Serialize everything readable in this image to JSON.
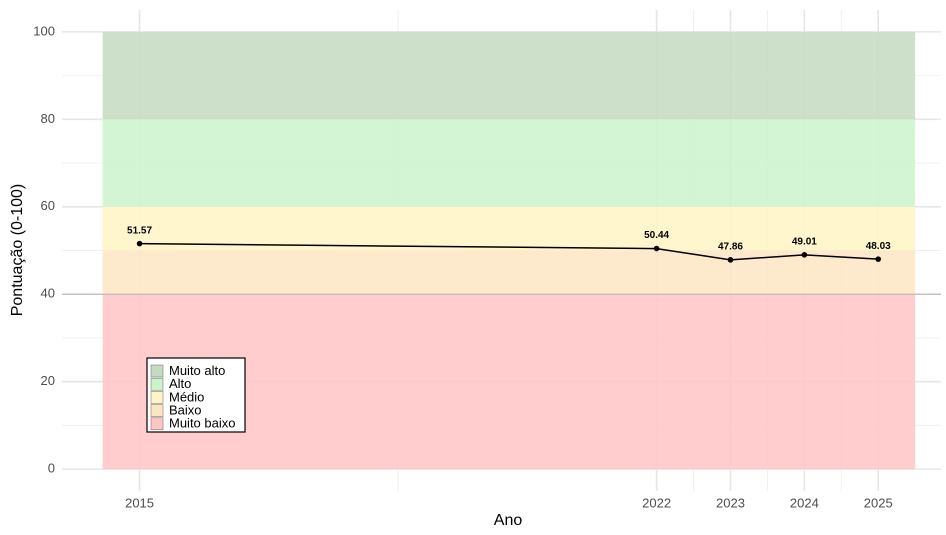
{
  "chart_data": {
    "type": "line",
    "xlabel": "Ano",
    "ylabel": "Pontuação (0-100)",
    "x": [
      2015,
      2022,
      2023,
      2024,
      2025
    ],
    "series": [
      {
        "name": "Pontuação",
        "color": "#000000",
        "values": [
          51.57,
          50.44,
          47.86,
          49.01,
          48.03
        ]
      }
    ],
    "xlim": [
      2013.95,
      2025.85
    ],
    "xticks": [
      2015,
      2022,
      2023,
      2024,
      2025
    ],
    "ylim": [
      -5,
      105
    ],
    "yticks": [
      0,
      20,
      40,
      60,
      80,
      100
    ],
    "grid": true,
    "legend_position": "bottom-left",
    "reference_line": 40,
    "bands": [
      {
        "name": "Muito alto",
        "color": "#c3dbc1",
        "range": [
          80,
          100
        ]
      },
      {
        "name": "Alto",
        "color": "#cdf3cd",
        "range": [
          60,
          80
        ]
      },
      {
        "name": "Médio",
        "color": "#fff4c4",
        "range": [
          50,
          60
        ]
      },
      {
        "name": "Baixo",
        "color": "#fde5c2",
        "range": [
          40,
          50
        ]
      },
      {
        "name": "Muito baixo",
        "color": "#ffc4c4",
        "range": [
          0,
          40
        ]
      }
    ]
  }
}
